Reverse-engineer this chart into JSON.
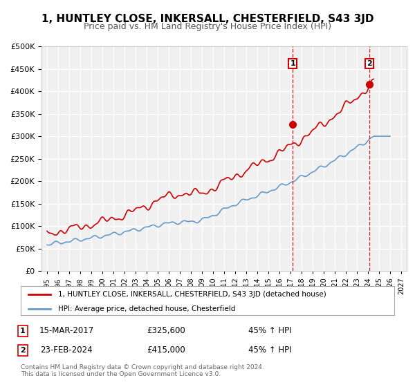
{
  "title": "1, HUNTLEY CLOSE, INKERSALL, CHESTERFIELD, S43 3JD",
  "subtitle": "Price paid vs. HM Land Registry's House Price Index (HPI)",
  "title_fontsize": 11,
  "subtitle_fontsize": 9,
  "background_color": "#ffffff",
  "plot_bg_color": "#f0f0f0",
  "grid_color": "#ffffff",
  "house_color": "#cc0000",
  "hpi_color": "#6699cc",
  "marker1_date": 2017.2,
  "marker1_price": 325600,
  "marker2_date": 2024.15,
  "marker2_price": 415000,
  "ylim": [
    0,
    500000
  ],
  "xlim": [
    1994.5,
    2027.5
  ],
  "yticks": [
    0,
    50000,
    100000,
    150000,
    200000,
    250000,
    300000,
    350000,
    400000,
    450000,
    500000
  ],
  "xticks": [
    1995,
    1996,
    1997,
    1998,
    1999,
    2000,
    2001,
    2002,
    2003,
    2004,
    2005,
    2006,
    2007,
    2008,
    2009,
    2010,
    2011,
    2012,
    2013,
    2014,
    2015,
    2016,
    2017,
    2018,
    2019,
    2020,
    2021,
    2022,
    2023,
    2024,
    2025,
    2026,
    2027
  ],
  "legend_label1": "1, HUNTLEY CLOSE, INKERSALL, CHESTERFIELD, S43 3JD (detached house)",
  "legend_label2": "HPI: Average price, detached house, Chesterfield",
  "annotation1_label": "1",
  "annotation1_date": "15-MAR-2017",
  "annotation1_price": "£325,600",
  "annotation1_hpi": "45% ↑ HPI",
  "annotation2_label": "2",
  "annotation2_date": "23-FEB-2024",
  "annotation2_price": "£415,000",
  "annotation2_hpi": "45% ↑ HPI",
  "footer": "Contains HM Land Registry data © Crown copyright and database right 2024.\nThis data is licensed under the Open Government Licence v3.0."
}
